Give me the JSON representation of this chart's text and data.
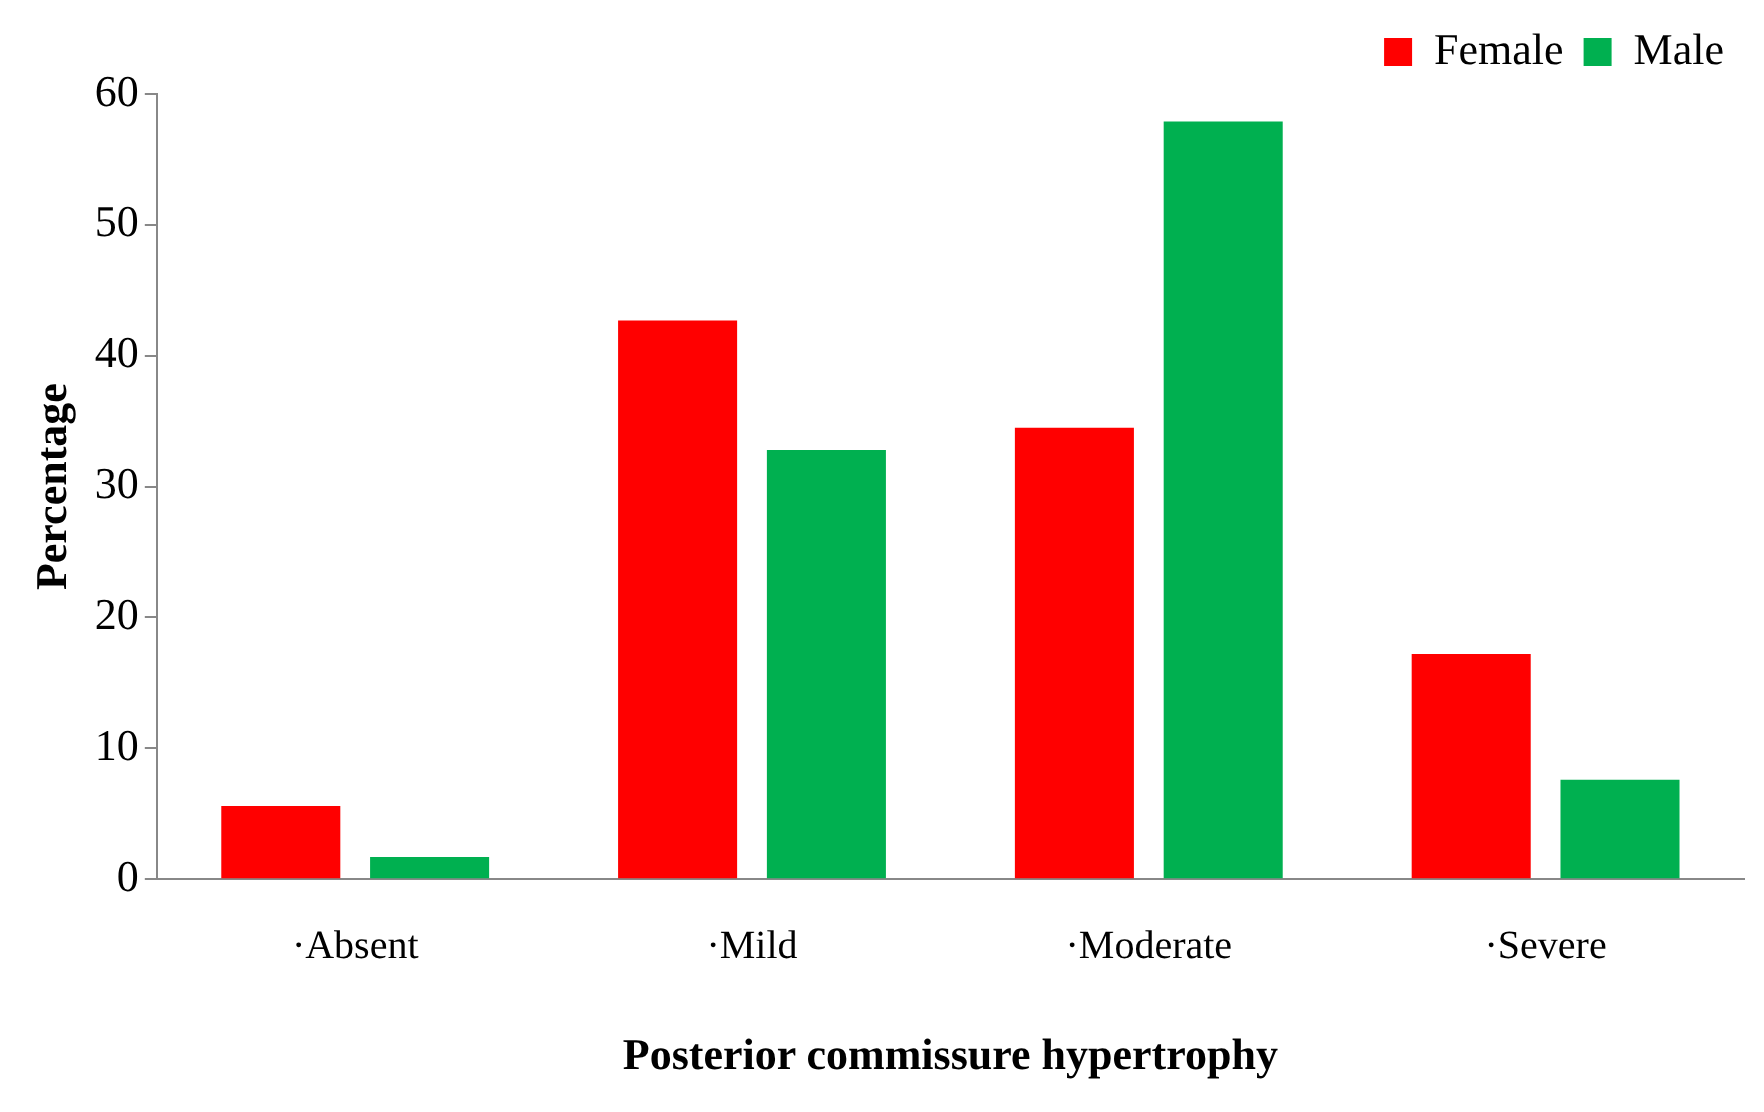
{
  "chart_data": {
    "type": "bar",
    "xlabel": "Posterior commissure hypertrophy",
    "ylabel": "Percentage",
    "categories": [
      "·Absent",
      "·Mild",
      "·Moderate",
      "·Severe"
    ],
    "series": [
      {
        "name": "Female",
        "color": "#ff0000",
        "values": [
          5.6,
          42.7,
          34.5,
          17.2
        ]
      },
      {
        "name": "Male",
        "color": "#00b050",
        "values": [
          1.7,
          32.8,
          57.9,
          7.6
        ]
      }
    ],
    "ylim": [
      0,
      60
    ],
    "yticks": [
      0,
      10,
      20,
      30,
      40,
      50,
      60
    ],
    "grid": false,
    "legend": "top right"
  }
}
